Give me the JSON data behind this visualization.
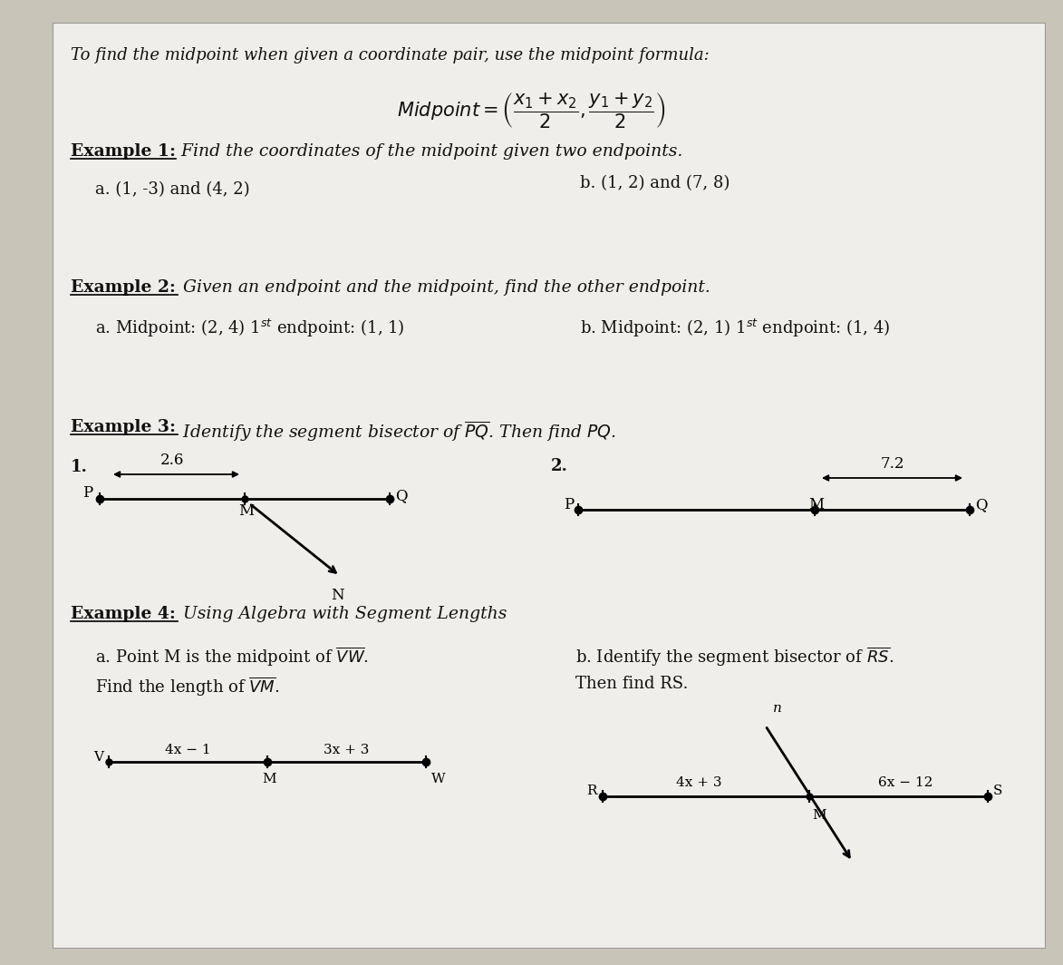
{
  "bg_color": "#c8c5b8",
  "paper_color": "#f0eeea",
  "title_line": "To find the midpoint when given a coordinate pair, use the midpoint formula:",
  "ex1_title": "Example 1:",
  "ex1_desc": " Find the coordinates of the midpoint given two endpoints.",
  "ex1a": "a. (1, -3) and (4, 2)",
  "ex1b": "b. (1, 2) and (7, 8)",
  "ex2_title": "Example 2:",
  "ex2_desc": " Given an endpoint and the midpoint, find the other endpoint.",
  "ex3_title": "Example 3:",
  "ex4_title": "Example 4:",
  "ex4_desc": " Using Algebra with Segment Lengths"
}
